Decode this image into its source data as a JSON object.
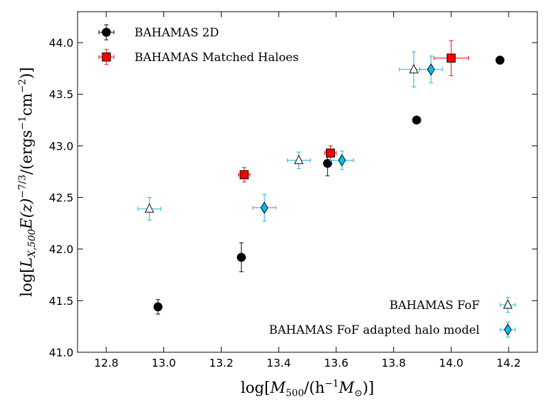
{
  "chart_data": {
    "type": "scatter",
    "title": "",
    "xlabel": "log[M500/(h^-1 M_sun)]",
    "ylabel": "log[L_X,500 E(z)^-7/3 /(ergs^-1 cm^-2)]",
    "xlabel_parts": {
      "pre": "log[",
      "M": "M",
      "sub": "500",
      "mid": "/(h",
      "sup": "−1",
      "M2": "M",
      "sun": "⊙",
      "post": ")]"
    },
    "ylabel_parts": {
      "pre": "log[",
      "L": "L",
      "sub": "X,500",
      "E": "E(z)",
      "sup": "−7/3",
      "mid": "/(ergs",
      "sup2": "−1",
      "cm": "cm",
      "sup3": "−2",
      "post": ")]"
    },
    "xlim": [
      12.7,
      14.3
    ],
    "ylim": [
      41.0,
      44.3
    ],
    "xticks": [
      12.8,
      13.0,
      13.2,
      13.4,
      13.6,
      13.8,
      14.0,
      14.2
    ],
    "xtick_labels": [
      "12.8",
      "13.0",
      "13.2",
      "13.4",
      "13.6",
      "13.8",
      "14.0",
      "14.2"
    ],
    "yticks": [
      41.0,
      41.5,
      42.0,
      42.5,
      43.0,
      43.5,
      44.0
    ],
    "ytick_labels": [
      "41.0",
      "41.5",
      "42.0",
      "42.5",
      "43.0",
      "43.5",
      "44.0"
    ],
    "series": [
      {
        "name": "BAHAMAS 2D",
        "marker": "circle",
        "color": "#000000",
        "errcolor": "#000000",
        "points": [
          {
            "x": 12.98,
            "y": 41.44,
            "xerr": 0,
            "yerr": 0.07
          },
          {
            "x": 13.27,
            "y": 41.92,
            "xerr": 0,
            "yerr": 0.14
          },
          {
            "x": 13.57,
            "y": 42.83,
            "xerr": 0,
            "yerr": 0.12
          },
          {
            "x": 13.88,
            "y": 43.25,
            "xerr": 0,
            "yerr": 0
          },
          {
            "x": 14.17,
            "y": 43.83,
            "xerr": 0,
            "yerr": 0
          }
        ]
      },
      {
        "name": "BAHAMAS Matched Haloes",
        "marker": "square",
        "color": "#ff0000",
        "errcolor": "#ff0000",
        "points": [
          {
            "x": 13.28,
            "y": 42.72,
            "xerr": 0.02,
            "yerr": 0.07
          },
          {
            "x": 13.58,
            "y": 42.93,
            "xerr": 0.02,
            "yerr": 0.07
          },
          {
            "x": 14.0,
            "y": 43.85,
            "xerr": 0.06,
            "yerr": 0.17
          }
        ]
      },
      {
        "name": "BAHAMAS FoF",
        "marker": "triangle",
        "color": "#ffffff",
        "errcolor": "#1ab0e0",
        "points": [
          {
            "x": 12.95,
            "y": 42.39,
            "xerr": 0.04,
            "yerr": 0.11
          },
          {
            "x": 13.47,
            "y": 42.86,
            "xerr": 0.04,
            "yerr": 0.08
          },
          {
            "x": 13.87,
            "y": 43.74,
            "xerr": 0.05,
            "yerr": 0.17
          }
        ]
      },
      {
        "name": "BAHAMAS FoF adapted halo model",
        "marker": "diamond",
        "color": "#00bfff",
        "errcolor": "#1ab0e0",
        "points": [
          {
            "x": 13.35,
            "y": 42.4,
            "xerr": 0.04,
            "yerr": 0.13
          },
          {
            "x": 13.62,
            "y": 42.86,
            "xerr": 0.04,
            "yerr": 0.09
          },
          {
            "x": 13.93,
            "y": 43.74,
            "xerr": 0.04,
            "yerr": 0.13
          }
        ]
      }
    ],
    "legends": [
      {
        "placement": "upper-left",
        "entries": [
          "BAHAMAS 2D",
          "BAHAMAS Matched Haloes"
        ]
      },
      {
        "placement": "lower-right",
        "entries": [
          "BAHAMAS FoF",
          "BAHAMAS FoF adapted halo model"
        ]
      }
    ]
  }
}
